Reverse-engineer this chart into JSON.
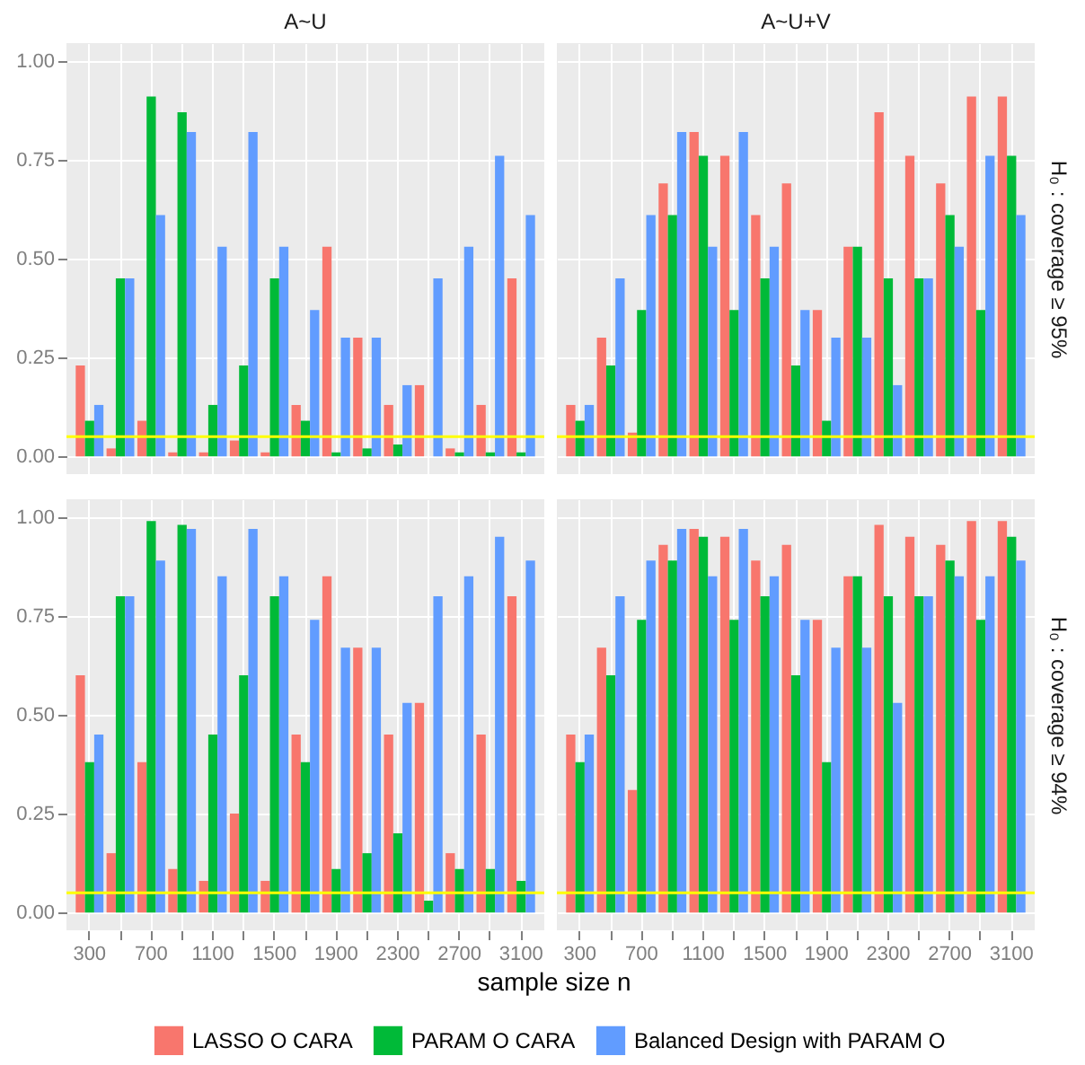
{
  "chart_data": [
    {
      "type": "bar",
      "title": "A~U",
      "categories": [
        "300",
        null,
        "700",
        null,
        "1100",
        null,
        "1500",
        null,
        "1900",
        null,
        "2300",
        null,
        "2700",
        null,
        "3100"
      ],
      "series": [
        {
          "color": "#f8766d",
          "values": [
            0.23,
            0.02,
            0.09,
            0.01,
            0.01,
            0.04,
            0.01,
            0.13,
            0.53,
            0.3,
            0.13,
            0.18,
            0.02,
            0.13,
            0.45
          ]
        },
        {
          "color": "#00ba38",
          "values": [
            0.09,
            0.45,
            0.91,
            0.87,
            0.13,
            0.23,
            0.45,
            0.09,
            0.01,
            0.02,
            0.03,
            0,
            0.01,
            0.01,
            0.01
          ]
        },
        {
          "color": "#619cff",
          "values": [
            0.13,
            0.45,
            0.61,
            0.82,
            0.53,
            0.82,
            0.53,
            0.37,
            0.3,
            0.3,
            0.18,
            0.45,
            0.53,
            0.76,
            0.61
          ]
        }
      ],
      "ylim": [
        -0.045,
        1.045
      ],
      "yticks": [
        {
          "value": 0,
          "label": "0.00"
        },
        {
          "value": 0.25,
          "label": "0.25"
        },
        {
          "value": 0.5,
          "label": "0.50"
        },
        {
          "value": 0.75,
          "label": "0.75"
        },
        {
          "value": 1,
          "label": "1.00"
        }
      ],
      "ref_lines": [
        {
          "axis": "y",
          "value": 0.05,
          "color": "#ffff00"
        }
      ],
      "grid": true,
      "tick_labels": "y"
    },
    {
      "type": "bar",
      "title": "A~U+V",
      "y2label": "H₀ : coverage ≥ 95%",
      "categories": [
        "300",
        null,
        "700",
        null,
        "1100",
        null,
        "1500",
        null,
        "1900",
        null,
        "2300",
        null,
        "2700",
        null,
        "3100"
      ],
      "series": [
        {
          "color": "#f8766d",
          "values": [
            0.13,
            0.3,
            0.06,
            0.69,
            0.82,
            0.76,
            0.61,
            0.69,
            0.37,
            0.53,
            0.87,
            0.76,
            0.69,
            0.91,
            0.91
          ]
        },
        {
          "color": "#00ba38",
          "values": [
            0.09,
            0.23,
            0.37,
            0.61,
            0.76,
            0.37,
            0.45,
            0.23,
            0.09,
            0.53,
            0.45,
            0.45,
            0.61,
            0.37,
            0.76
          ]
        },
        {
          "color": "#619cff",
          "values": [
            0.13,
            0.45,
            0.61,
            0.82,
            0.53,
            0.82,
            0.53,
            0.37,
            0.3,
            0.3,
            0.18,
            0.45,
            0.53,
            0.76,
            0.61
          ]
        }
      ],
      "ylim": [
        -0.045,
        1.045
      ],
      "yticks": [
        0,
        0.25,
        0.5,
        0.75,
        1
      ],
      "ref_lines": [
        {
          "axis": "y",
          "value": 0.05,
          "color": "#ffff00"
        }
      ],
      "grid": true,
      "tick_labels": false
    },
    {
      "type": "bar",
      "xlabel": "sample size n",
      "legend": "bottom",
      "categories": [
        "300",
        null,
        "700",
        null,
        "1100",
        null,
        "1500",
        null,
        "1900",
        null,
        "2300",
        null,
        "2700",
        null,
        "3100"
      ],
      "series": [
        {
          "name": "LASSO O CARA",
          "color": "#f8766d",
          "values": [
            0.6,
            0.15,
            0.38,
            0.11,
            0.08,
            0.25,
            0.08,
            0.45,
            0.85,
            0.67,
            0.45,
            0.53,
            0.15,
            0.45,
            0.8
          ]
        },
        {
          "name": "PARAM O CARA",
          "color": "#00ba38",
          "values": [
            0.38,
            0.8,
            0.99,
            0.98,
            0.45,
            0.6,
            0.8,
            0.38,
            0.11,
            0.15,
            0.2,
            0.03,
            0.11,
            0.11,
            0.08
          ]
        },
        {
          "name": "Balanced Design with PARAM O",
          "color": "#619cff",
          "values": [
            0.45,
            0.8,
            0.89,
            0.97,
            0.85,
            0.97,
            0.85,
            0.74,
            0.67,
            0.67,
            0.53,
            0.8,
            0.85,
            0.95,
            0.89
          ]
        }
      ],
      "ylim": [
        -0.045,
        1.045
      ],
      "yticks": [
        {
          "value": 0,
          "label": "0.00"
        },
        {
          "value": 0.25,
          "label": "0.25"
        },
        {
          "value": 0.5,
          "label": "0.50"
        },
        {
          "value": 0.75,
          "label": "0.75"
        },
        {
          "value": 1,
          "label": "1.00"
        }
      ],
      "ref_lines": [
        {
          "axis": "y",
          "value": 0.05,
          "color": "#ffff00"
        }
      ],
      "grid": true
    },
    {
      "type": "bar",
      "y2label": "H₀ : coverage ≥ 94%",
      "categories": [
        "300",
        null,
        "700",
        null,
        "1100",
        null,
        "1500",
        null,
        "1900",
        null,
        "2300",
        null,
        "2700",
        null,
        "3100"
      ],
      "series": [
        {
          "color": "#f8766d",
          "values": [
            0.45,
            0.67,
            0.31,
            0.93,
            0.97,
            0.95,
            0.89,
            0.93,
            0.74,
            0.85,
            0.98,
            0.95,
            0.93,
            0.99,
            0.99
          ]
        },
        {
          "color": "#00ba38",
          "values": [
            0.38,
            0.6,
            0.74,
            0.89,
            0.95,
            0.74,
            0.8,
            0.6,
            0.38,
            0.85,
            0.8,
            0.8,
            0.89,
            0.74,
            0.95
          ]
        },
        {
          "color": "#619cff",
          "values": [
            0.45,
            0.8,
            0.89,
            0.97,
            0.85,
            0.97,
            0.85,
            0.74,
            0.67,
            0.67,
            0.53,
            0.8,
            0.85,
            0.85,
            0.89
          ]
        }
      ],
      "ylim": [
        -0.045,
        1.045
      ],
      "yticks": [
        0,
        0.25,
        0.5,
        0.75,
        1
      ],
      "ref_lines": [
        {
          "axis": "y",
          "value": 0.05,
          "color": "#ffff00"
        }
      ],
      "grid": true,
      "tick_labels": "x"
    }
  ]
}
